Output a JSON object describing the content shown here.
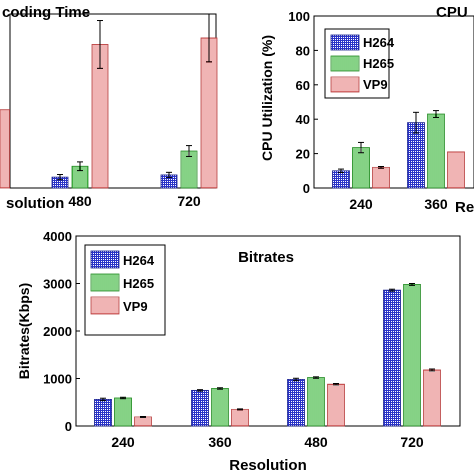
{
  "chart_data": [
    {
      "type": "bar",
      "title": "coding Time",
      "xlabel": "solution",
      "ylabel": "",
      "categories": [
        "480",
        "720"
      ],
      "series": [
        {
          "name": "H264",
          "values": [
            5,
            6
          ],
          "errors": [
            1.2,
            1.2
          ]
        },
        {
          "name": "H265",
          "values": [
            10,
            17
          ],
          "errors": [
            2,
            2.5
          ]
        },
        {
          "name": "VP9",
          "values": [
            66,
            69
          ],
          "errors": [
            11,
            11
          ]
        }
      ],
      "partial_bar_top": 36,
      "ylim": [
        0,
        80
      ],
      "grid": false
    },
    {
      "type": "bar",
      "title": "CPU",
      "xlabel": "Re",
      "ylabel": "CPU Utilization (%)",
      "categories": [
        "240",
        "360"
      ],
      "series": [
        {
          "name": "H264",
          "values": [
            10,
            38
          ],
          "errors": [
            1,
            6
          ]
        },
        {
          "name": "H265",
          "values": [
            23.5,
            43
          ],
          "errors": [
            3,
            2
          ]
        },
        {
          "name": "VP9",
          "values": [
            12,
            21
          ],
          "errors": [
            0.5,
            0
          ]
        }
      ],
      "ylim": [
        0,
        100
      ],
      "yticks": [
        "0",
        "20",
        "40",
        "60",
        "80",
        "100"
      ],
      "legend": "top-left",
      "grid": false
    },
    {
      "type": "bar",
      "title": "Bitrates",
      "xlabel": "Resolution",
      "ylabel": "Bitrates(Kbps)",
      "categories": [
        "240",
        "360",
        "480",
        "720"
      ],
      "series": [
        {
          "name": "H264",
          "values": [
            560,
            750,
            980,
            2860
          ],
          "errors": [
            25,
            15,
            25,
            20
          ]
        },
        {
          "name": "H265",
          "values": [
            590,
            790,
            1020,
            2980
          ],
          "errors": [
            15,
            15,
            15,
            20
          ]
        },
        {
          "name": "VP9",
          "values": [
            190,
            350,
            880,
            1180
          ],
          "errors": [
            10,
            10,
            15,
            20
          ]
        }
      ],
      "ylim": [
        0,
        4000
      ],
      "yticks": [
        "0",
        "1000",
        "2000",
        "3000",
        "4000"
      ],
      "legend": "top-left",
      "grid": false
    }
  ]
}
